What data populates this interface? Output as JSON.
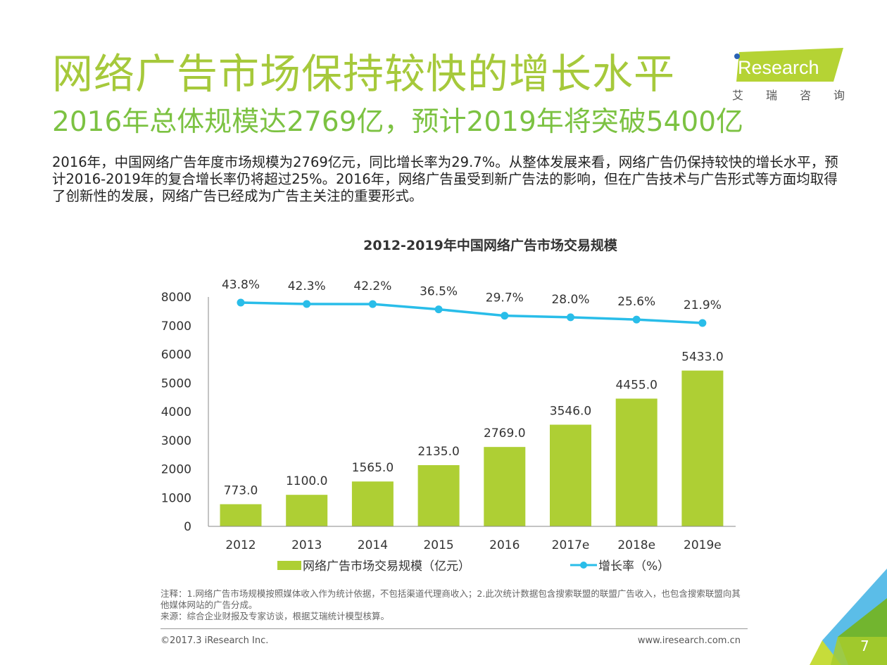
{
  "header": {
    "title": "网络广告市场保持较快的增长水平",
    "subtitle": "2016年总体规模达2769亿，预计2019年将突破5400亿"
  },
  "logo": {
    "brand": "iResearch",
    "chinese": [
      "艾",
      "瑞",
      "咨",
      "询"
    ]
  },
  "body_text": "2016年，中国网络广告年度市场规模为2769亿元，同比增长率为29.7%。从整体发展来看，网络广告仍保持较快的增长水平，预计2016-2019年的复合增长率仍将超过25%。2016年，网络广告虽受到新广告法的影响，但在广告技术与广告形式等方面均取得了创新性的发展，网络广告已经成为广告主关注的重要形式。",
  "chart_data": {
    "type": "bar",
    "title": "2012-2019年中国网络广告市场交易规模",
    "categories": [
      "2012",
      "2013",
      "2014",
      "2015",
      "2016",
      "2017e",
      "2018e",
      "2019e"
    ],
    "series": [
      {
        "name": "网络广告市场交易规模（亿元）",
        "type": "bar",
        "color": "#aecf34",
        "values": [
          773.0,
          1100.0,
          1565.0,
          2135.0,
          2769.0,
          3546.0,
          4455.0,
          5433.0
        ],
        "labels": [
          "773.0",
          "1100.0",
          "1565.0",
          "2135.0",
          "2769.0",
          "3546.0",
          "4455.0",
          "5433.0"
        ]
      },
      {
        "name": "增长率（%）",
        "type": "line",
        "color": "#29bde9",
        "values": [
          43.8,
          42.3,
          42.2,
          36.5,
          29.7,
          28.0,
          25.6,
          21.9
        ],
        "labels": [
          "43.8%",
          "42.3%",
          "42.2%",
          "36.5%",
          "29.7%",
          "28.0%",
          "25.6%",
          "21.9%"
        ]
      }
    ],
    "y_ticks": [
      "0",
      "1000",
      "2000",
      "3000",
      "4000",
      "5000",
      "6000",
      "7000",
      "8000"
    ],
    "ylim": [
      0,
      8000
    ],
    "xlabel": "",
    "ylabel": "",
    "grid": false,
    "legend_position": "bottom"
  },
  "notes": {
    "note": "注释：1.网络广告市场规模按照媒体收入作为统计依据，不包括渠道代理商收入；2.此次统计数据包含搜索联盟的联盟广告收入，也包含搜索联盟向其他媒体网站的广告分成。",
    "source": "来源：综合企业财报及专家访谈，根据艾瑞统计模型核算。"
  },
  "footer": {
    "copyright": "©2017.3 iResearch Inc.",
    "website": "www.iresearch.com.cn",
    "page_number": "7"
  }
}
